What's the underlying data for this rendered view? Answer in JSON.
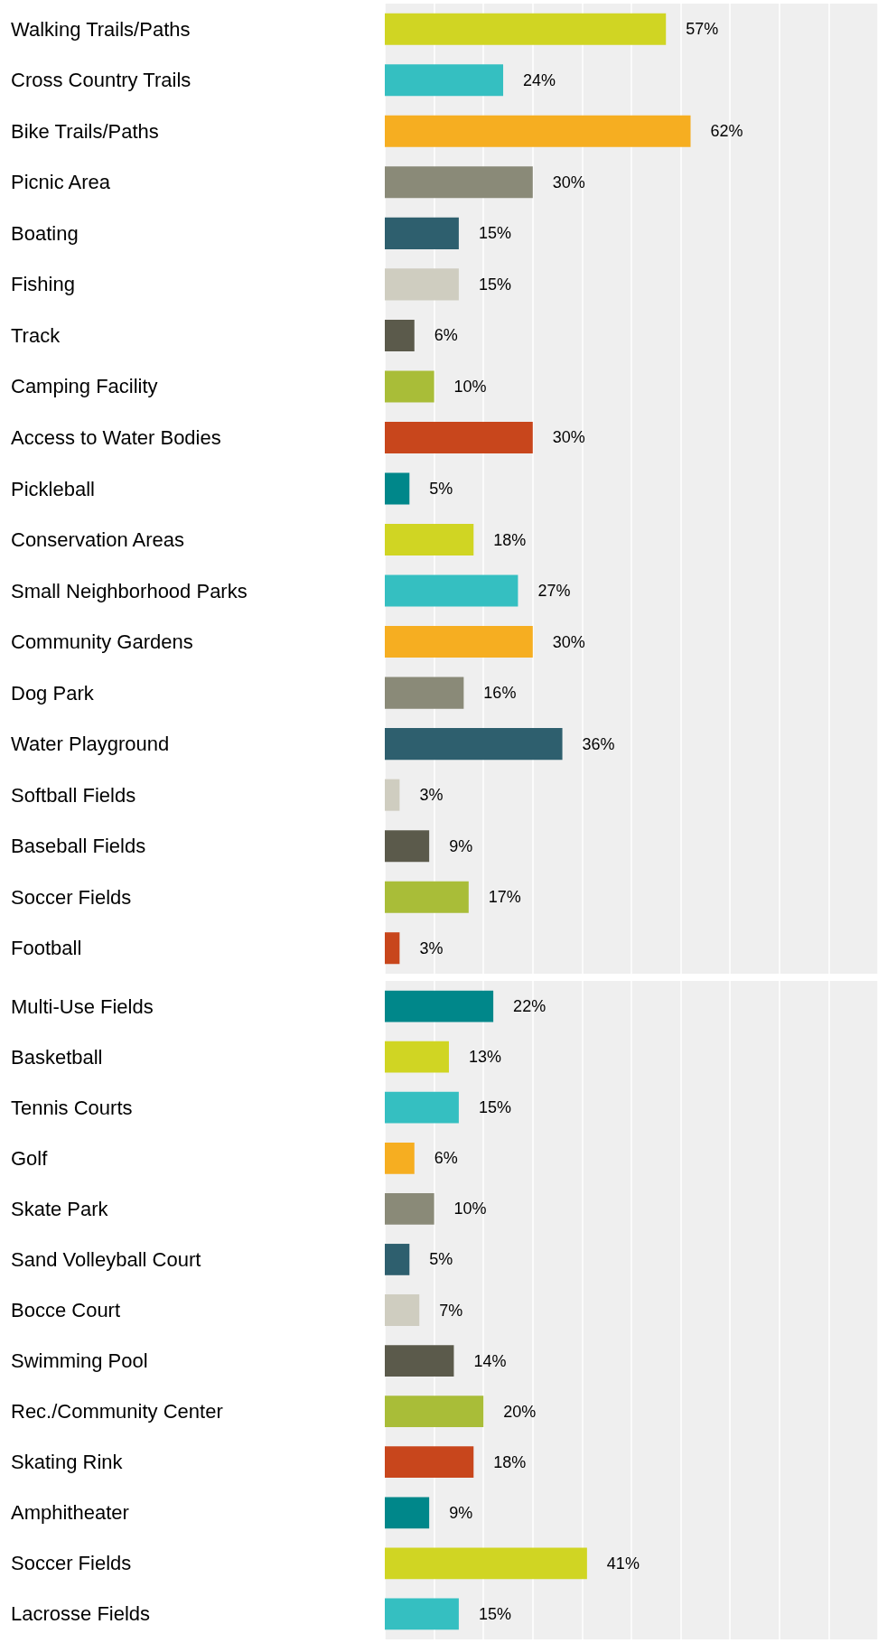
{
  "chart_data": [
    {
      "type": "bar",
      "orientation": "horizontal",
      "tick_labels": false,
      "grid": "x",
      "xlim": [
        0,
        100
      ],
      "xticks": [
        0,
        10,
        20,
        30,
        40,
        50,
        60,
        70,
        80,
        90,
        100
      ],
      "categories": [
        "Walking Trails/Paths",
        "Cross Country Trails",
        "Bike Trails/Paths",
        "Picnic Area",
        "Boating",
        "Fishing",
        "Track",
        "Camping Facility",
        "Access to Water Bodies",
        "Pickleball",
        "Conservation Areas",
        "Small Neighborhood Parks",
        "Community Gardens",
        "Dog Park",
        "Water Playground",
        "Softball Fields",
        "Baseball Fields",
        "Soccer Fields",
        "Football"
      ],
      "values": [
        57,
        24,
        62,
        30,
        15,
        15,
        6,
        10,
        30,
        5,
        18,
        27,
        30,
        16,
        36,
        3,
        9,
        17,
        3
      ],
      "value_labels": [
        "57%",
        "24%",
        "62%",
        "30%",
        "15%",
        "15%",
        "6%",
        "10%",
        "30%",
        "5%",
        "18%",
        "27%",
        "30%",
        "16%",
        "36%",
        "3%",
        "9%",
        "17%",
        "3%"
      ],
      "colors": [
        "#d0d523",
        "#35bfc1",
        "#f6ae21",
        "#8a8a78",
        "#2e5f6e",
        "#cfcdc0",
        "#5b5a4b",
        "#a9bd38",
        "#c8461c",
        "#00878a",
        "#d0d523",
        "#35bfc1",
        "#f6ae21",
        "#8a8a78",
        "#2e5f6e",
        "#cfcdc0",
        "#5b5a4b",
        "#a9bd38",
        "#c8461c"
      ]
    },
    {
      "type": "bar",
      "orientation": "horizontal",
      "tick_labels": false,
      "grid": "x",
      "xlim": [
        0,
        100
      ],
      "xticks": [
        0,
        10,
        20,
        30,
        40,
        50,
        60,
        70,
        80,
        90,
        100
      ],
      "categories": [
        "Multi-Use Fields",
        "Basketball",
        "Tennis Courts",
        "Golf",
        "Skate Park",
        "Sand Volleyball Court",
        "Bocce Court",
        "Swimming Pool",
        "Rec./Community Center",
        "Skating Rink",
        "Amphitheater",
        "Soccer Fields",
        "Lacrosse Fields"
      ],
      "values": [
        22,
        13,
        15,
        6,
        10,
        5,
        7,
        14,
        20,
        18,
        9,
        41,
        15
      ],
      "value_labels": [
        "22%",
        "13%",
        "15%",
        "6%",
        "10%",
        "5%",
        "7%",
        "14%",
        "20%",
        "18%",
        "9%",
        "41%",
        "15%"
      ],
      "colors": [
        "#00878a",
        "#d0d523",
        "#35bfc1",
        "#f6ae21",
        "#8a8a78",
        "#2e5f6e",
        "#cfcdc0",
        "#5b5a4b",
        "#a9bd38",
        "#c8461c",
        "#00878a",
        "#d0d523",
        "#35bfc1"
      ]
    }
  ]
}
